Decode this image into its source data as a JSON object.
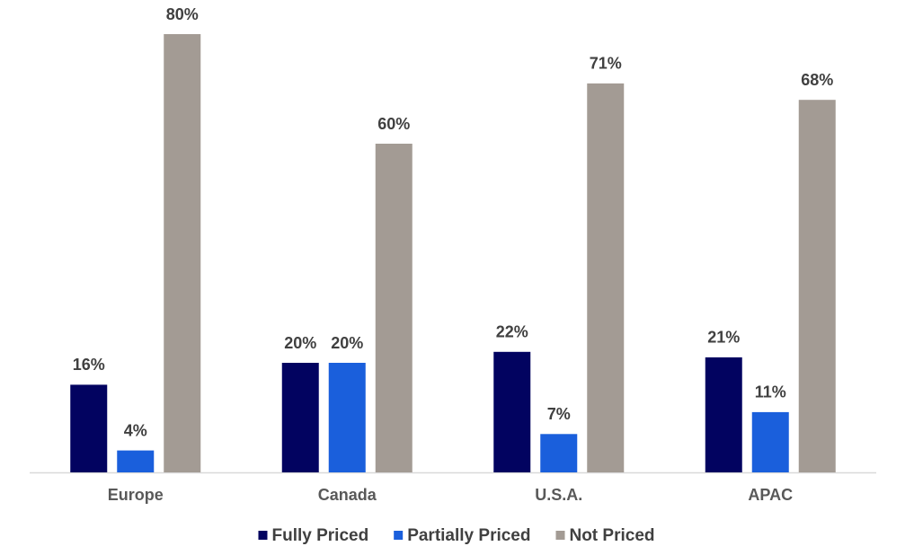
{
  "chart_data": {
    "type": "bar",
    "categories": [
      "Europe",
      "Canada",
      "U.S.A.",
      "APAC"
    ],
    "series": [
      {
        "name": "Fully Priced",
        "color": "#020360",
        "values": [
          16,
          20,
          22,
          21
        ],
        "value_labels": [
          "16%",
          "20%",
          "22%",
          "21%"
        ]
      },
      {
        "name": "Partially Priced",
        "color": "#1a5fdc",
        "values": [
          4,
          20,
          7,
          11
        ],
        "value_labels": [
          "4%",
          "20%",
          "7%",
          "11%"
        ]
      },
      {
        "name": "Not Priced",
        "color": "#a39b94",
        "values": [
          80,
          60,
          71,
          68
        ],
        "value_labels": [
          "80%",
          "60%",
          "71%",
          "68%"
        ]
      }
    ]
  }
}
